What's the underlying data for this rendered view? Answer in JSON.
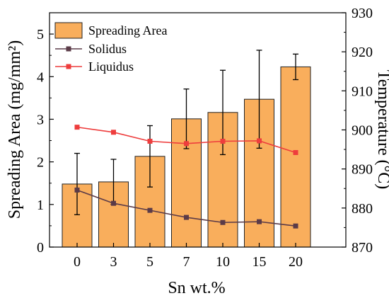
{
  "chart_data": {
    "type": "bar",
    "categories": [
      "0",
      "3",
      "5",
      "7",
      "10",
      "15",
      "20"
    ],
    "xlabel": "Sn wt.%",
    "ylabel_left": "Spreading Area (mg/mm²)",
    "ylabel_right": "Temperature (°C)",
    "ylim_left": [
      0,
      5.5
    ],
    "yticks_left": [
      "0",
      "1",
      "2",
      "3",
      "4",
      "5"
    ],
    "ylim_right": [
      870,
      930
    ],
    "yticks_right": [
      "870",
      "880",
      "890",
      "900",
      "910",
      "920",
      "930"
    ],
    "grid": false,
    "legend_position": "top-left",
    "bar_series": {
      "name": "Spreading Area",
      "axis": "left",
      "color": "#F9AE5C",
      "edge_color": "#222222",
      "values": [
        1.48,
        1.53,
        2.13,
        3.01,
        3.16,
        3.47,
        4.23
      ],
      "errors": [
        0.72,
        0.53,
        0.72,
        0.7,
        0.99,
        1.15,
        0.3
      ]
    },
    "line_series": [
      {
        "name": "Solidus",
        "axis": "right",
        "color": "#5B3B48",
        "marker": "square",
        "values": [
          884.6,
          881.2,
          879.4,
          877.6,
          876.3,
          876.5,
          875.4
        ]
      },
      {
        "name": "Liquidus",
        "axis": "right",
        "color": "#EE3D3D",
        "marker": "square",
        "values": [
          900.7,
          899.4,
          897.1,
          896.5,
          897.1,
          897.2,
          894.2
        ]
      }
    ]
  }
}
